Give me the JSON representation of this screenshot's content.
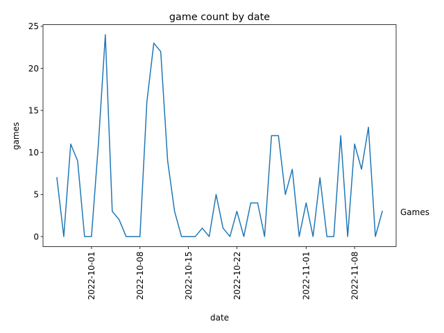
{
  "chart_data": {
    "type": "line",
    "title": "game count by date",
    "xlabel": "date",
    "ylabel": "games",
    "series_label": "Games",
    "line_color": "#1f77b4",
    "grid": false,
    "xlim": [
      "2022-09-24",
      "2022-11-14"
    ],
    "ylim": [
      -1.2,
      25.2
    ],
    "xticks": [
      "2022-10-01",
      "2022-10-08",
      "2022-10-15",
      "2022-10-22",
      "2022-11-01",
      "2022-11-08"
    ],
    "yticks": [
      "0",
      "5",
      "10",
      "15",
      "20",
      "25"
    ],
    "series": [
      {
        "x": [
          "2022-09-26",
          "2022-09-27",
          "2022-09-28",
          "2022-09-29",
          "2022-09-30",
          "2022-10-01",
          "2022-10-02",
          "2022-10-03",
          "2022-10-04",
          "2022-10-05",
          "2022-10-06",
          "2022-10-07",
          "2022-10-08",
          "2022-10-09",
          "2022-10-10",
          "2022-10-11",
          "2022-10-12",
          "2022-10-13",
          "2022-10-14",
          "2022-10-15",
          "2022-10-16",
          "2022-10-17",
          "2022-10-18",
          "2022-10-19",
          "2022-10-20",
          "2022-10-21",
          "2022-10-22",
          "2022-10-23",
          "2022-10-24",
          "2022-10-25",
          "2022-10-26",
          "2022-10-27",
          "2022-10-28",
          "2022-10-29",
          "2022-10-30",
          "2022-10-31",
          "2022-11-01",
          "2022-11-02",
          "2022-11-03",
          "2022-11-04",
          "2022-11-05",
          "2022-11-06",
          "2022-11-07",
          "2022-11-08",
          "2022-11-09",
          "2022-11-10",
          "2022-11-11",
          "2022-11-12"
        ],
        "values": [
          7,
          0,
          11,
          9,
          0,
          0,
          11,
          24,
          3,
          2,
          0,
          0,
          0,
          16,
          23,
          22,
          9,
          3,
          0,
          0,
          0,
          1,
          0,
          5,
          1,
          0,
          3,
          0,
          4,
          4,
          0,
          12,
          12,
          5,
          8,
          0,
          4,
          0,
          7,
          0,
          0,
          12,
          0,
          11,
          8,
          13,
          0,
          3
        ]
      }
    ]
  }
}
